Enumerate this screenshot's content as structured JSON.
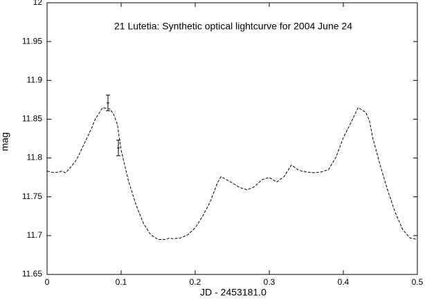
{
  "chart_data": {
    "type": "line",
    "title": "21 Lutetia: Synthetic optical lightcurve for 2004 June 24",
    "xlabel": "JD - 2453181.0",
    "ylabel": "mag",
    "xlim": [
      0,
      0.5
    ],
    "ylim": [
      11.65,
      12
    ],
    "xticks": [
      0,
      0.1,
      0.2,
      0.3,
      0.4,
      0.5
    ],
    "yticks": [
      11.65,
      11.7,
      11.75,
      11.8,
      11.85,
      11.9,
      11.95,
      12
    ],
    "series": [
      {
        "type": "line",
        "color": "#000000",
        "dashed": true,
        "x": [
          0,
          0.01,
          0.02,
          0.025,
          0.03,
          0.04,
          0.05,
          0.06,
          0.065,
          0.075,
          0.085,
          0.09,
          0.095,
          0.1,
          0.11,
          0.12,
          0.13,
          0.14,
          0.15,
          0.16,
          0.165,
          0.17,
          0.18,
          0.19,
          0.2,
          0.21,
          0.22,
          0.23,
          0.235,
          0.25,
          0.26,
          0.27,
          0.28,
          0.29,
          0.3,
          0.31,
          0.32,
          0.33,
          0.34,
          0.35,
          0.36,
          0.37,
          0.38,
          0.39,
          0.4,
          0.41,
          0.42,
          0.43,
          0.435,
          0.44,
          0.45,
          0.46,
          0.47,
          0.48,
          0.49,
          0.5
        ],
        "values": [
          11.783,
          11.781,
          11.783,
          11.781,
          11.786,
          11.798,
          11.818,
          11.838,
          11.85,
          11.865,
          11.863,
          11.856,
          11.843,
          11.81,
          11.77,
          11.74,
          11.716,
          11.701,
          11.695,
          11.695,
          11.697,
          11.696,
          11.697,
          11.701,
          11.71,
          11.725,
          11.743,
          11.768,
          11.776,
          11.768,
          11.762,
          11.759,
          11.763,
          11.772,
          11.775,
          11.769,
          11.776,
          11.791,
          11.784,
          11.782,
          11.781,
          11.782,
          11.785,
          11.801,
          11.826,
          11.845,
          11.865,
          11.859,
          11.849,
          11.825,
          11.79,
          11.758,
          11.73,
          11.708,
          11.697,
          11.695
        ]
      },
      {
        "type": "errorbar",
        "color": "#000000",
        "x": [
          0.0822,
          0.0963
        ],
        "values": [
          11.871,
          11.813
        ],
        "errors": [
          0.01,
          0.01
        ]
      }
    ]
  }
}
